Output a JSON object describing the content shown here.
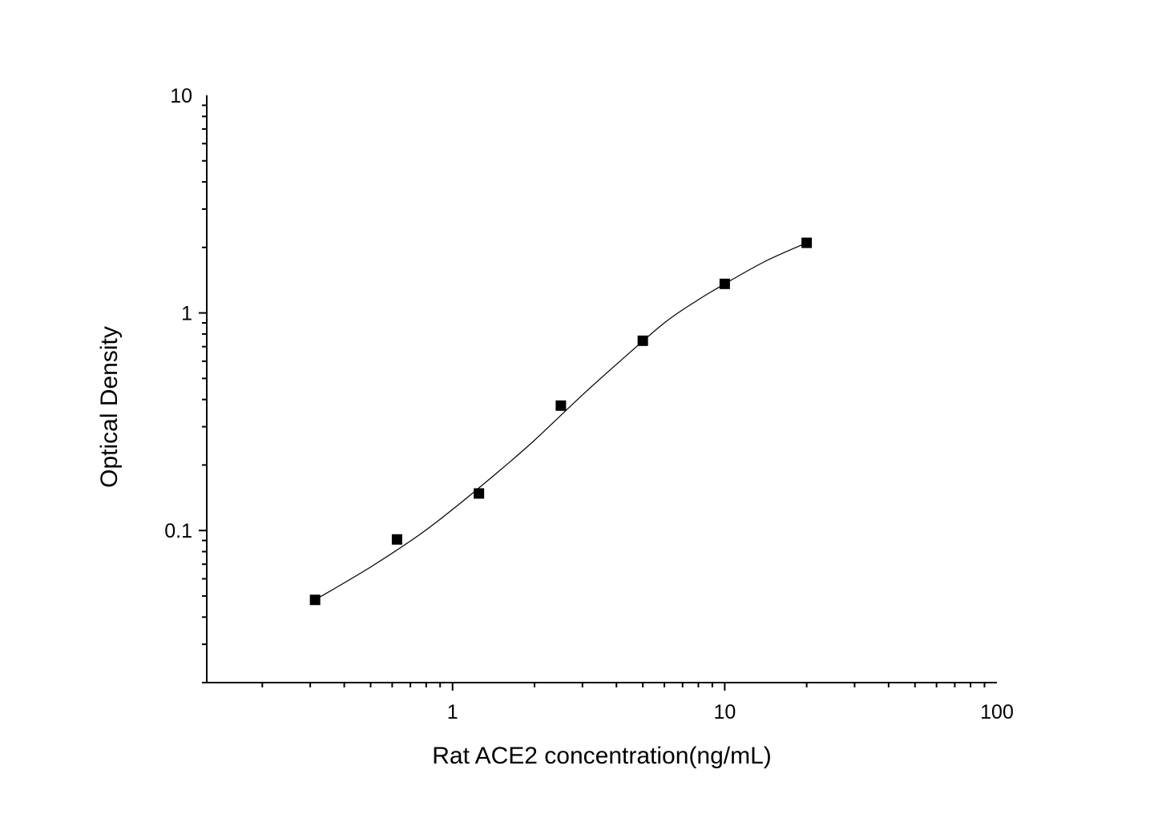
{
  "chart_data": {
    "type": "scatter",
    "title": "",
    "xlabel": "Rat ACE2 concentration(ng/mL)",
    "ylabel": "Optical Density",
    "xscale": "log",
    "yscale": "log",
    "xlim": [
      0.125,
      100
    ],
    "ylim": [
      0.02,
      10
    ],
    "xticks": [
      {
        "value": 1,
        "label": "1"
      },
      {
        "value": 10,
        "label": "10"
      },
      {
        "value": 100,
        "label": "100"
      }
    ],
    "yticks": [
      {
        "value": 0.1,
        "label": "0.1"
      },
      {
        "value": 1,
        "label": "1"
      },
      {
        "value": 10,
        "label": "10"
      }
    ],
    "grid": false,
    "legend": "none",
    "marker": "square",
    "color": "#000000",
    "series": [
      {
        "x": [
          0.3125,
          0.625,
          1.25,
          2.5,
          5,
          10,
          20
        ],
        "y": [
          0.048,
          0.091,
          0.148,
          0.375,
          0.745,
          1.36,
          2.1
        ]
      }
    ],
    "fit_curve": {
      "type": "smooth",
      "x": [
        0.3125,
        0.5,
        0.75,
        1.0,
        1.5,
        2.0,
        3.0,
        4.0,
        6.0,
        8.0,
        10,
        14,
        20
      ],
      "y": [
        0.048,
        0.068,
        0.095,
        0.125,
        0.19,
        0.26,
        0.42,
        0.58,
        0.9,
        1.15,
        1.36,
        1.72,
        2.1
      ]
    }
  }
}
